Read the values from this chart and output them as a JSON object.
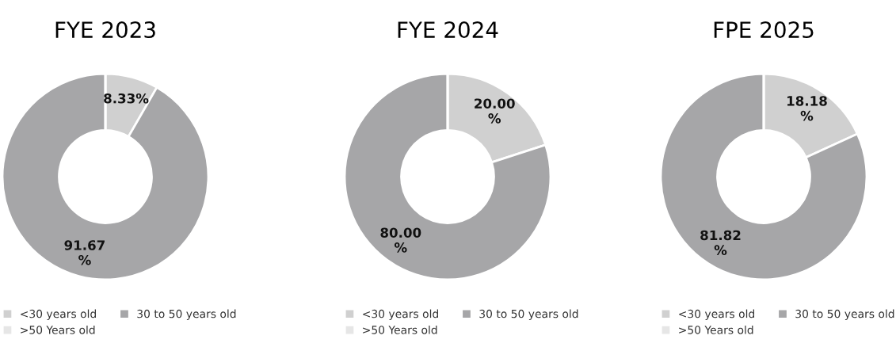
{
  "chart_data": [
    {
      "type": "donut",
      "title": "FYE 2023",
      "categories": [
        "<30 years old",
        "30 to 50 years old",
        ">50 Years old"
      ],
      "values": [
        8.33,
        91.67,
        0
      ],
      "colors": [
        "#d0d0d0",
        "#a6a6a8",
        "#e6e6e6"
      ],
      "value_labels": [
        "8.33%",
        "91.67\n%",
        null
      ],
      "legend": "bottom"
    },
    {
      "type": "donut",
      "title": "FYE 2024",
      "categories": [
        "<30 years old",
        "30 to 50 years old",
        ">50 Years old"
      ],
      "values": [
        20.0,
        80.0,
        0
      ],
      "colors": [
        "#d0d0d0",
        "#a6a6a8",
        "#e6e6e6"
      ],
      "value_labels": [
        "20.00\n%",
        "80.00\n%",
        null
      ],
      "legend": "bottom"
    },
    {
      "type": "donut",
      "title": "FPE 2025",
      "categories": [
        "<30 years old",
        "30 to 50 years old",
        ">50 Years old"
      ],
      "values": [
        18.18,
        81.82,
        0
      ],
      "colors": [
        "#d0d0d0",
        "#a6a6a8",
        "#e6e6e6"
      ],
      "value_labels": [
        "18.18\n%",
        "81.82\n%",
        null
      ],
      "legend": "bottom"
    }
  ]
}
